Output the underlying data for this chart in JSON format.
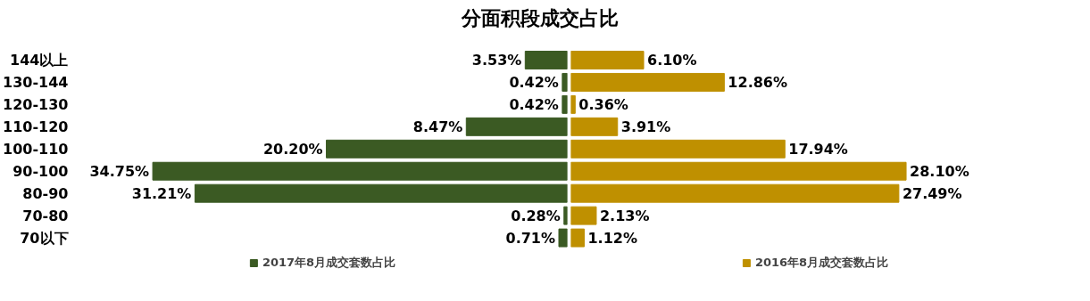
{
  "chart_data": [
    {
      "type": "bar",
      "orientation": "horizontal",
      "title": "分面积段成交占比",
      "categories": [
        "144以上",
        "130-144",
        "120-130",
        "110-120",
        "100-110",
        "90-100",
        "80-90",
        "70-80",
        "70以下"
      ],
      "series": [
        {
          "name": "2017年8月成交套数占比",
          "color": "#3b5a23",
          "values": [
            3.53,
            0.42,
            0.42,
            8.47,
            20.2,
            34.75,
            31.21,
            0.28,
            0.71
          ],
          "value_labels": [
            "3.53%",
            "0.42%",
            "0.42%",
            "8.47%",
            "20.20%",
            "34.75%",
            "31.21%",
            "0.28%",
            "0.71%"
          ]
        }
      ],
      "legend": "bottom"
    },
    {
      "type": "bar",
      "orientation": "horizontal",
      "categories": [
        null,
        null,
        null,
        null,
        null,
        null,
        null,
        null,
        null
      ],
      "series": [
        {
          "name": "2016年8月成交套数占比",
          "color": "#bf9000",
          "values": [
            6.1,
            12.86,
            0.36,
            3.91,
            17.94,
            28.1,
            27.49,
            2.13,
            1.12
          ],
          "value_labels": [
            "6.10%",
            "12.86%",
            "0.36%",
            "3.91%",
            "17.94%",
            "28.10%",
            "27.49%",
            "2.13%",
            "1.12%"
          ]
        }
      ],
      "legend": "bottom"
    }
  ]
}
